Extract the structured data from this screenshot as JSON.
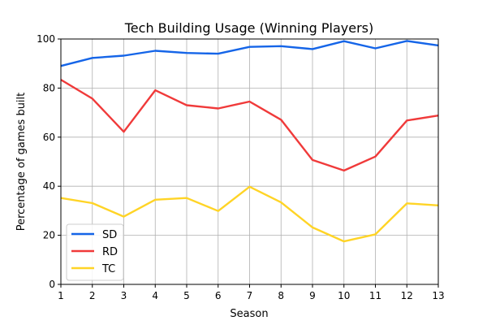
{
  "chart_data": {
    "type": "line",
    "title": "Tech Building Usage (Winning Players)",
    "xlabel": "Season",
    "ylabel": "Percentage of games built",
    "x": [
      1,
      2,
      3,
      4,
      5,
      6,
      7,
      8,
      9,
      10,
      11,
      12,
      13
    ],
    "xlim": [
      1,
      13
    ],
    "ylim": [
      0,
      100
    ],
    "xticks": [
      1,
      2,
      3,
      4,
      5,
      6,
      7,
      8,
      9,
      10,
      11,
      12,
      13
    ],
    "yticks": [
      0,
      20,
      40,
      60,
      80,
      100
    ],
    "grid": true,
    "legend_position": "lower-left",
    "series": [
      {
        "name": "SD",
        "color": "#1565e8",
        "values": [
          89.0,
          92.3,
          93.2,
          95.2,
          94.3,
          94.0,
          96.8,
          97.1,
          95.9,
          99.1,
          96.2,
          99.2,
          97.4
        ]
      },
      {
        "name": "RD",
        "color": "#f03a3a",
        "values": [
          83.4,
          75.7,
          62.2,
          79.1,
          73.0,
          71.7,
          74.5,
          67.1,
          50.7,
          46.4,
          52.1,
          66.8,
          68.8
        ]
      },
      {
        "name": "TC",
        "color": "#ffd426",
        "values": [
          35.2,
          33.1,
          27.6,
          34.5,
          35.2,
          29.9,
          39.8,
          33.4,
          23.2,
          17.5,
          20.4,
          33.0,
          32.2
        ]
      }
    ]
  }
}
